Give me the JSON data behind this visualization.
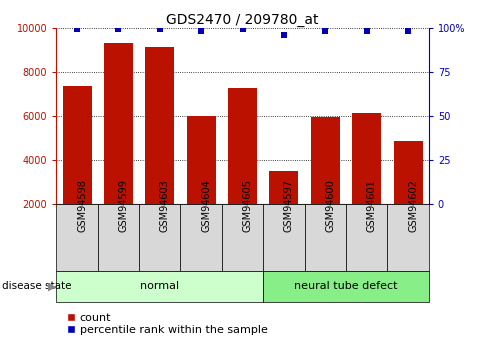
{
  "title": "GDS2470 / 209780_at",
  "categories": [
    "GSM94598",
    "GSM94599",
    "GSM94603",
    "GSM94604",
    "GSM94605",
    "GSM94597",
    "GSM94600",
    "GSM94601",
    "GSM94602"
  ],
  "counts": [
    7350,
    9300,
    9100,
    6000,
    7250,
    3500,
    5950,
    6100,
    4850
  ],
  "percentile_ranks": [
    99,
    99,
    99,
    98,
    99,
    96,
    98,
    98,
    98
  ],
  "bar_color": "#BB1100",
  "dot_color": "#0000BB",
  "ylim_left": [
    2000,
    10000
  ],
  "ylim_right": [
    0,
    100
  ],
  "yticks_left": [
    2000,
    4000,
    6000,
    8000,
    10000
  ],
  "yticks_right": [
    0,
    25,
    50,
    75,
    100
  ],
  "groups": [
    {
      "label": "normal",
      "indices": [
        0,
        1,
        2,
        3,
        4
      ],
      "color": "#CCFFCC"
    },
    {
      "label": "neural tube defect",
      "indices": [
        5,
        6,
        7,
        8
      ],
      "color": "#88EE88"
    }
  ],
  "disease_state_label": "disease state",
  "legend_count_label": "count",
  "legend_percentile_label": "percentile rank within the sample",
  "tick_label_fontsize": 7,
  "title_fontsize": 10,
  "group_label_fontsize": 8,
  "legend_fontsize": 8
}
